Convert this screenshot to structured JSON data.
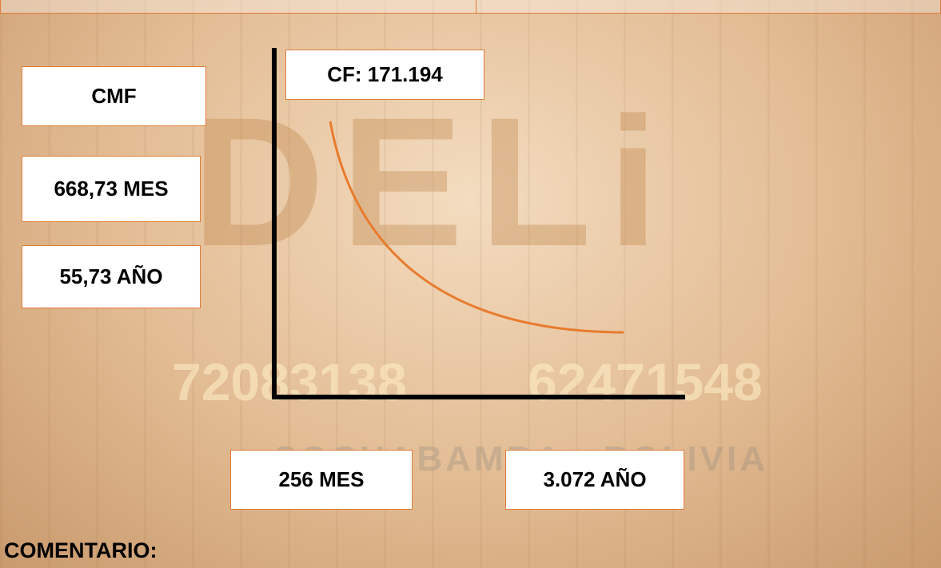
{
  "watermark": {
    "logo": "DELi",
    "phone_1": "72083138",
    "phone_2": "62471548",
    "city": "COCHABAMBA - BOLIVIA"
  },
  "left_boxes": {
    "title": "CMF",
    "monthly": "668,73 MES",
    "yearly": "55,73 AÑO"
  },
  "fixed_cost": "CF: 171.194",
  "bottom_boxes": {
    "monthly": "256 MES",
    "yearly": "3.072 AÑO"
  },
  "comment_label": "COMENTARIO:"
}
